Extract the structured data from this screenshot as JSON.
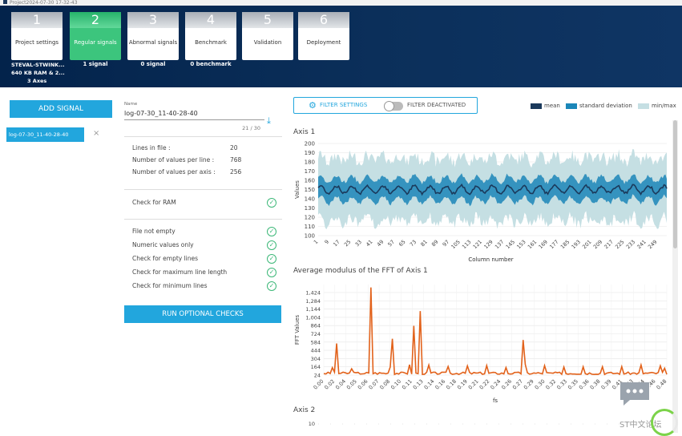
{
  "project_title": "Project2024-07-30 17-32-43",
  "steps": [
    {
      "num": "1",
      "label": "Project settings",
      "sub": ""
    },
    {
      "num": "2",
      "label": "Regular signals",
      "sub": "1 signal"
    },
    {
      "num": "3",
      "label": "Abnormal signals",
      "sub": "0 signal"
    },
    {
      "num": "4",
      "label": "Benchmark",
      "sub": "0 benchmark"
    },
    {
      "num": "5",
      "label": "Validation",
      "sub": ""
    },
    {
      "num": "6",
      "label": "Deployment",
      "sub": ""
    }
  ],
  "device": {
    "line1": "STEVAL-STWINK...",
    "line2": "640 KB RAM & 2...",
    "line3": "3 Axes"
  },
  "left": {
    "add_signal": "ADD SIGNAL",
    "signal_name": "log-07-30_11-40-28-40",
    "close": "×"
  },
  "file": {
    "name_label": "Name",
    "name_value": "log-07-30_11-40-28-40",
    "counter": "21 / 30",
    "lines_label": "Lines in file :",
    "lines_value": "20",
    "vpl_label": "Number of values per line :",
    "vpl_value": "768",
    "vpa_label": "Number of values per axis :",
    "vpa_value": "256",
    "ram_check": "Check for RAM",
    "checks": [
      "File not empty",
      "Numeric values only",
      "Check for empty lines",
      "Check for maximum line length",
      "Check for minimum lines"
    ],
    "run_button": "RUN OPTIONAL CHECKS"
  },
  "filter": {
    "settings": "FILTER SETTINGS",
    "state": "FILTER DEACTIVATED"
  },
  "legend": [
    {
      "name": "mean",
      "color": "#1b3a5c"
    },
    {
      "name": "standard deviation",
      "color": "#1b86b8"
    },
    {
      "name": "min/max",
      "color": "#c5dfe3"
    }
  ],
  "watermark": "ST中文论坛",
  "chart_data": [
    {
      "type": "line",
      "title": "Axis 1",
      "ylabel": "Values",
      "xlabel": "Column number",
      "ylim": [
        100,
        200
      ],
      "yticks": [
        100,
        110,
        120,
        130,
        140,
        150,
        160,
        170,
        180,
        190,
        200
      ],
      "xticks": [
        1,
        9,
        17,
        25,
        33,
        41,
        49,
        57,
        65,
        73,
        81,
        89,
        97,
        105,
        113,
        121,
        129,
        137,
        145,
        153,
        161,
        169,
        177,
        185,
        193,
        201,
        209,
        217,
        225,
        233,
        241,
        249
      ],
      "series": [
        {
          "name": "mean",
          "approx_center": 150
        },
        {
          "name": "standard deviation",
          "approx_band": [
            138,
            163
          ]
        },
        {
          "name": "min/max",
          "approx_band": [
            112,
            188
          ]
        }
      ]
    },
    {
      "type": "line",
      "title": "Average modulus of the FFT of Axis 1",
      "ylabel": "FFT Values",
      "xlabel": "fs",
      "yticks": [
        24,
        164,
        304,
        444,
        584,
        724,
        864,
        1004,
        1144,
        1284,
        1424
      ],
      "xticks": [
        "0.00",
        "0.02",
        "0.04",
        "0.05",
        "0.06",
        "0.07",
        "0.08",
        "0.10",
        "0.11",
        "0.13",
        "0.14",
        "0.16",
        "0.18",
        "0.19",
        "0.21",
        "0.22",
        "0.24",
        "0.26",
        "0.27",
        "0.29",
        "0.30",
        "0.32",
        "0.33",
        "0.35",
        "0.36",
        "0.38",
        "0.39",
        "0.41",
        "0.43",
        "0.44",
        "0.46",
        "0.48"
      ],
      "series": [
        {
          "name": "FFT",
          "color": "#e2621b",
          "peaks": [
            [
              0.02,
              560
            ],
            [
              0.07,
              1510
            ],
            [
              0.1,
              640
            ],
            [
              0.13,
              860
            ],
            [
              0.14,
              1110
            ],
            [
              0.29,
              620
            ]
          ]
        }
      ]
    },
    {
      "type": "line",
      "title": "Axis 2",
      "yticks": [
        10
      ]
    }
  ]
}
